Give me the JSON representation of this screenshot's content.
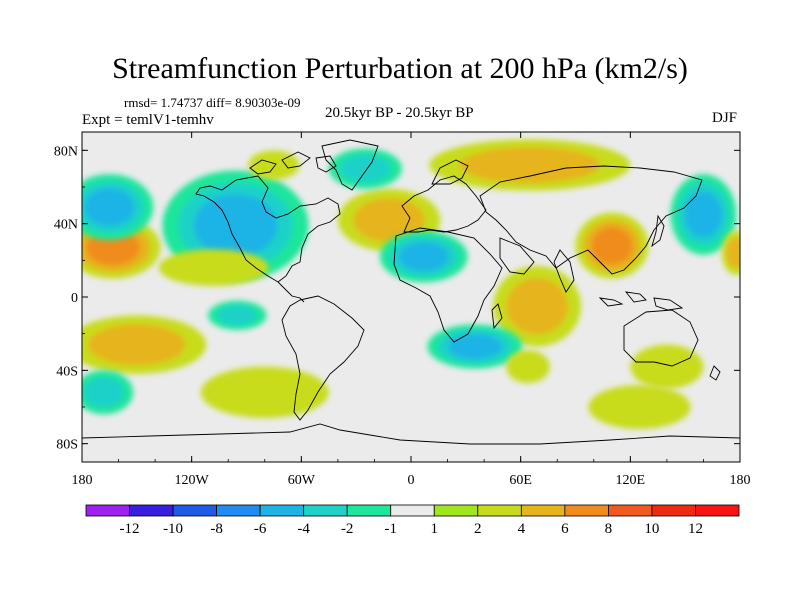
{
  "chart_data": {
    "type": "heatmap",
    "title": "Streamfunction Perturbation at 200 hPa (km2/s)",
    "annotation_stats": "rmsd= 1.74737  diff= 8.90303e-09",
    "annotation_period": "20.5kyr BP - 20.5kyr BP",
    "annotation_experiment": "Expt = temlV1-temhv",
    "annotation_season": "DJF",
    "projection": "cylindrical equidistant",
    "x_range": [
      -180,
      180
    ],
    "y_range": [
      -90,
      90
    ],
    "x_ticks": [
      {
        "value": -180,
        "label": "180"
      },
      {
        "value": -120,
        "label": "120W"
      },
      {
        "value": -60,
        "label": "60W"
      },
      {
        "value": 0,
        "label": "0"
      },
      {
        "value": 60,
        "label": "60E"
      },
      {
        "value": 120,
        "label": "120E"
      },
      {
        "value": 180,
        "label": "180"
      }
    ],
    "y_ticks": [
      {
        "value": 80,
        "label": "80N"
      },
      {
        "value": 40,
        "label": "40N"
      },
      {
        "value": 0,
        "label": "0"
      },
      {
        "value": -40,
        "label": "40S"
      },
      {
        "value": -80,
        "label": "80S"
      }
    ],
    "colorbar": {
      "labels": [
        "-12",
        "-10",
        "-8",
        "-6",
        "-4",
        "-2",
        "-1",
        "1",
        "2",
        "4",
        "6",
        "8",
        "10",
        "12"
      ],
      "colors": [
        "#a020f0",
        "#3a1ee0",
        "#1e5ae6",
        "#1e8cf0",
        "#1eb4e6",
        "#1ed2c8",
        "#1ee69a",
        "#ebebeb",
        "#a0e61e",
        "#c8dc1e",
        "#e6b41e",
        "#f08c1e",
        "#f05a1e",
        "#ee2b0e",
        "#f81414"
      ]
    },
    "regions": [
      {
        "name": "north-pacific-west-positive",
        "lon": -163,
        "lat": 27,
        "rx": 26,
        "ry": 17,
        "value": 6
      },
      {
        "name": "north-pacific-negative",
        "lon": -165,
        "lat": 49,
        "rx": 24,
        "ry": 18,
        "value": -4
      },
      {
        "name": "canada-negative",
        "lon": -96,
        "lat": 39,
        "rx": 40,
        "ry": 30,
        "value": -5
      },
      {
        "name": "central-pacific-positive",
        "lon": -108,
        "lat": 16,
        "rx": 30,
        "ry": 10,
        "value": 2
      },
      {
        "name": "arctic-canada-positive",
        "lon": -75,
        "lat": 72,
        "rx": 14,
        "ry": 8,
        "value": 2
      },
      {
        "name": "north-atlantic-positive",
        "lon": -12,
        "lat": 42,
        "rx": 28,
        "ry": 17,
        "value": 5
      },
      {
        "name": "greenland-negative",
        "lon": -25,
        "lat": 70,
        "rx": 20,
        "ry": 11,
        "value": -2
      },
      {
        "name": "eurasia-arctic-positive",
        "lon": 65,
        "lat": 72,
        "rx": 55,
        "ry": 14,
        "value": 4
      },
      {
        "name": "africa-negative",
        "lon": 7,
        "lat": 22,
        "rx": 24,
        "ry": 14,
        "value": -5
      },
      {
        "name": "asia-positive",
        "lon": 110,
        "lat": 28,
        "rx": 20,
        "ry": 18,
        "value": 6
      },
      {
        "name": "east-pacific-negative",
        "lon": 160,
        "lat": 45,
        "rx": 18,
        "ry": 22,
        "value": -5
      },
      {
        "name": "far-east-pacific-positive",
        "lon": 178,
        "lat": 24,
        "rx": 8,
        "ry": 12,
        "value": 4
      },
      {
        "name": "indian-ocean-positive",
        "lon": 69,
        "lat": -5,
        "rx": 24,
        "ry": 22,
        "value": 4
      },
      {
        "name": "south-atlantic-negative",
        "lon": 35,
        "lat": -27,
        "rx": 26,
        "ry": 12,
        "value": -4
      },
      {
        "name": "south-indian-positive",
        "lon": 64,
        "lat": -38,
        "rx": 12,
        "ry": 9,
        "value": 2
      },
      {
        "name": "south-pacific-positive",
        "lon": -150,
        "lat": -26,
        "rx": 38,
        "ry": 16,
        "value": 4
      },
      {
        "name": "southern-ocean-negative",
        "lon": -168,
        "lat": -52,
        "rx": 16,
        "ry": 12,
        "value": -3
      },
      {
        "name": "drake-passage-positive",
        "lon": -80,
        "lat": -52,
        "rx": 35,
        "ry": 14,
        "value": 2
      },
      {
        "name": "south-america-negative",
        "lon": -95,
        "lat": -10,
        "rx": 16,
        "ry": 8,
        "value": -2
      },
      {
        "name": "south-australia-positive",
        "lon": 140,
        "lat": -38,
        "rx": 20,
        "ry": 12,
        "value": 2
      },
      {
        "name": "southern-indian-ocean-positive",
        "lon": 125,
        "lat": -60,
        "rx": 28,
        "ry": 12,
        "value": 2
      }
    ]
  }
}
